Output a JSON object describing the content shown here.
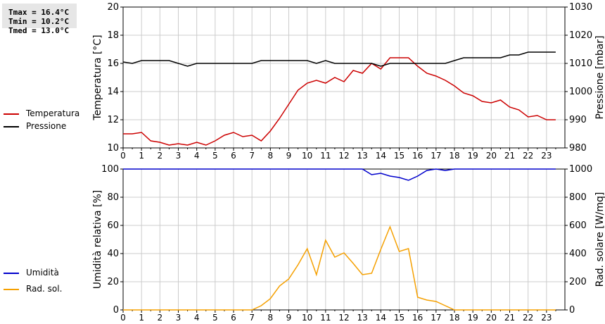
{
  "stats": {
    "tmax": "Tmax = 16.4°C",
    "tmin": "Tmin = 10.2°C",
    "tmed": "Tmed = 13.0°C"
  },
  "legend": {
    "temperature": "Temperatura",
    "pressure": "Pressione",
    "humidity": "Umidità",
    "solar": "Rad. sol."
  },
  "colors": {
    "temperature": "#cc0000",
    "pressure": "#000000",
    "humidity": "#0000cc",
    "solar": "#f5a000",
    "grid": "#cccccc"
  },
  "chart_data": [
    {
      "type": "line",
      "xlim": [
        0,
        24
      ],
      "x_ticks": [
        "0",
        "1",
        "2",
        "3",
        "4",
        "5",
        "6",
        "7",
        "8",
        "9",
        "10",
        "11",
        "12",
        "13",
        "14",
        "15",
        "16",
        "17",
        "18",
        "19",
        "20",
        "21",
        "22",
        "23"
      ],
      "ylabel_left": "Temperatura [°C]",
      "ylabel_right": "Pressione [mbar]",
      "ylim_left": [
        10,
        20
      ],
      "ylim_right": [
        980,
        1030
      ],
      "y_ticks_left": [
        "10",
        "12",
        "14",
        "16",
        "18",
        "20"
      ],
      "y_ticks_right": [
        "980",
        "990",
        "1000",
        "1010",
        "1020",
        "1030"
      ],
      "grid": true,
      "series": [
        {
          "name": "Temperatura",
          "axis": "left",
          "x": [
            0,
            0.5,
            1,
            1.5,
            2,
            2.5,
            3,
            3.5,
            4,
            4.5,
            5,
            5.5,
            6,
            6.5,
            7,
            7.5,
            8,
            8.5,
            9,
            9.5,
            10,
            10.5,
            11,
            11.5,
            12,
            12.5,
            13,
            13.5,
            14,
            14.5,
            15,
            15.5,
            16,
            16.5,
            17,
            17.5,
            18,
            18.5,
            19,
            19.5,
            20,
            20.5,
            21,
            21.5,
            22,
            22.5,
            23,
            23.5
          ],
          "values": [
            11.0,
            11.0,
            11.1,
            10.5,
            10.4,
            10.2,
            10.3,
            10.2,
            10.4,
            10.2,
            10.5,
            10.9,
            11.1,
            10.8,
            10.9,
            10.5,
            11.2,
            12.1,
            13.1,
            14.1,
            14.6,
            14.8,
            14.6,
            15.0,
            14.7,
            15.5,
            15.3,
            16.0,
            15.6,
            16.4,
            16.4,
            16.4,
            15.8,
            15.3,
            15.1,
            14.8,
            14.4,
            13.9,
            13.7,
            13.3,
            13.2,
            13.4,
            12.9,
            12.7,
            12.2,
            12.3,
            12.0,
            12.0
          ]
        },
        {
          "name": "Pressione",
          "axis": "right",
          "x": [
            0,
            0.5,
            1,
            1.5,
            2,
            2.5,
            3,
            3.5,
            4,
            4.5,
            5,
            5.5,
            6,
            6.5,
            7,
            7.5,
            8,
            8.5,
            9,
            9.5,
            10,
            10.5,
            11,
            11.5,
            12,
            12.5,
            13,
            13.5,
            14,
            14.5,
            15,
            15.5,
            16,
            16.5,
            17,
            17.5,
            18,
            18.5,
            19,
            19.5,
            20,
            20.5,
            21,
            21.5,
            22,
            22.5,
            23,
            23.5
          ],
          "values": [
            1010.5,
            1010,
            1011,
            1011,
            1011,
            1011,
            1010,
            1009,
            1010,
            1010,
            1010,
            1010,
            1010,
            1010,
            1010,
            1011,
            1011,
            1011,
            1011,
            1011,
            1011,
            1010,
            1011,
            1010,
            1010,
            1010,
            1010,
            1010,
            1009,
            1010,
            1010,
            1010,
            1010,
            1010,
            1010,
            1010,
            1011,
            1012,
            1012,
            1012,
            1012,
            1012,
            1013,
            1013,
            1014,
            1014,
            1014,
            1014
          ]
        }
      ]
    },
    {
      "type": "line",
      "xlim": [
        0,
        24
      ],
      "x_ticks": [
        "0",
        "1",
        "2",
        "3",
        "4",
        "5",
        "6",
        "7",
        "8",
        "9",
        "10",
        "11",
        "12",
        "13",
        "14",
        "15",
        "16",
        "17",
        "18",
        "19",
        "20",
        "21",
        "22",
        "23"
      ],
      "ylabel_left": "Umidità relativa [%]",
      "ylabel_right": "Rad. solare [W/mq]",
      "ylim_left": [
        0,
        100
      ],
      "ylim_right": [
        0,
        1000
      ],
      "y_ticks_left": [
        "0",
        "20",
        "40",
        "60",
        "80",
        "100"
      ],
      "y_ticks_right": [
        "0",
        "200",
        "400",
        "600",
        "800",
        "1000"
      ],
      "grid": true,
      "series": [
        {
          "name": "Umidità",
          "axis": "left",
          "x": [
            0,
            0.5,
            1,
            1.5,
            2,
            2.5,
            3,
            3.5,
            4,
            4.5,
            5,
            5.5,
            6,
            6.5,
            7,
            7.5,
            8,
            8.5,
            9,
            9.5,
            10,
            10.5,
            11,
            11.5,
            12,
            12.5,
            13,
            13.5,
            14,
            14.5,
            15,
            15.5,
            16,
            16.5,
            17,
            17.5,
            18,
            18.5,
            19,
            19.5,
            20,
            20.5,
            21,
            21.5,
            22,
            22.5,
            23,
            23.5
          ],
          "values": [
            100,
            100,
            100,
            100,
            100,
            100,
            100,
            100,
            100,
            100,
            100,
            100,
            100,
            100,
            100,
            100,
            100,
            100,
            100,
            100,
            100,
            100,
            100,
            100,
            100,
            100,
            100,
            96,
            97,
            95,
            94,
            92,
            95,
            99,
            100,
            99,
            100,
            100,
            100,
            100,
            100,
            100,
            100,
            100,
            100,
            100,
            100,
            100
          ]
        },
        {
          "name": "Rad. sol.",
          "axis": "right",
          "x": [
            0,
            0.5,
            1,
            1.5,
            2,
            2.5,
            3,
            3.5,
            4,
            4.5,
            5,
            5.5,
            6,
            6.5,
            7,
            7.5,
            8,
            8.5,
            9,
            9.5,
            10,
            10.5,
            11,
            11.5,
            12,
            12.5,
            13,
            13.5,
            14,
            14.5,
            15,
            15.5,
            16,
            16.5,
            17,
            17.5,
            18,
            18.5,
            19,
            19.5,
            20,
            20.5,
            21,
            21.5,
            22,
            22.5,
            23,
            23.5
          ],
          "values": [
            0,
            0,
            0,
            0,
            0,
            0,
            0,
            0,
            0,
            0,
            0,
            0,
            0,
            0,
            0,
            30,
            80,
            170,
            220,
            320,
            435,
            250,
            495,
            375,
            405,
            330,
            250,
            260,
            430,
            590,
            415,
            435,
            90,
            70,
            60,
            30,
            0,
            0,
            0,
            0,
            0,
            0,
            0,
            0,
            0,
            0,
            0,
            0
          ]
        }
      ]
    }
  ]
}
